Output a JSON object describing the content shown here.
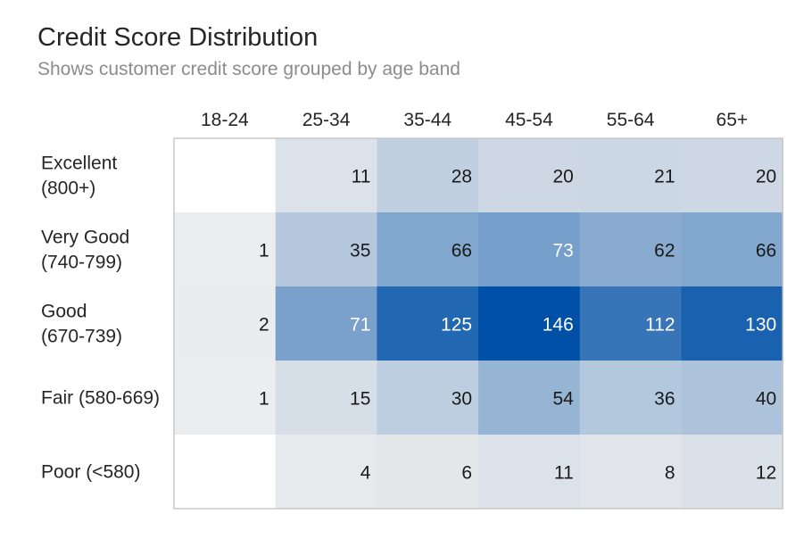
{
  "chart_data": {
    "type": "heatmap",
    "title": "Credit Score Distribution",
    "subtitle": "Shows customer credit score grouped by age band",
    "columns": [
      "18-24",
      "25-34",
      "35-44",
      "45-54",
      "55-64",
      "65+"
    ],
    "rows": [
      [
        "Excellent",
        "(800+)"
      ],
      [
        "Very Good",
        "(740-799)"
      ],
      [
        "Good",
        "(670-739)"
      ],
      [
        "Fair (580-669)"
      ],
      [
        "Poor (<580)"
      ]
    ],
    "values": [
      [
        null,
        11,
        28,
        20,
        21,
        20
      ],
      [
        1,
        35,
        66,
        73,
        62,
        66
      ],
      [
        2,
        71,
        125,
        146,
        112,
        130
      ],
      [
        1,
        15,
        30,
        54,
        36,
        40
      ],
      [
        null,
        4,
        6,
        11,
        8,
        12
      ]
    ],
    "color_scale": {
      "low": "#eeeeee",
      "high": "#0050a8",
      "min": 0,
      "max": 146
    },
    "border_color": "#c8c8c8"
  }
}
